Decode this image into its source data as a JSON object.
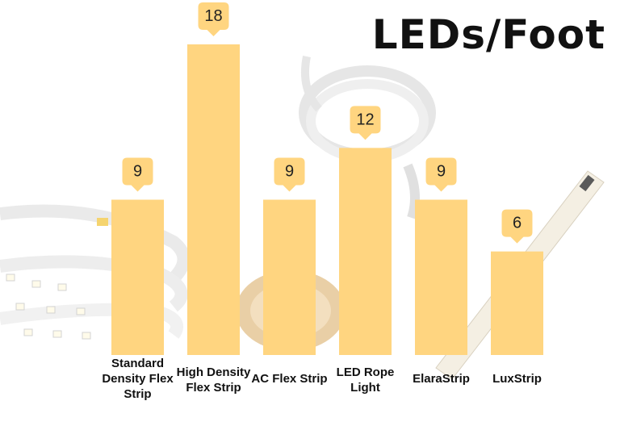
{
  "chart_data": {
    "type": "bar",
    "title": "LEDs/Foot",
    "categories": [
      "Standard Density Flex Strip",
      "High Density Flex Strip",
      "AC Flex Strip",
      "LED Rope Light",
      "ElaraStrip",
      "LuxStrip"
    ],
    "category_lines": [
      [
        "Standard",
        "Density Flex",
        "Strip"
      ],
      [
        "High Density",
        "Flex Strip"
      ],
      [
        "AC Flex Strip"
      ],
      [
        "LED Rope",
        "Light"
      ],
      [
        "ElaraStrip"
      ],
      [
        "LuxStrip"
      ]
    ],
    "values": [
      9,
      18,
      9,
      12,
      9,
      6
    ],
    "data_labels": [
      "9",
      "18",
      "9",
      "12",
      "9",
      "6"
    ],
    "xlabel": "",
    "ylabel": "",
    "ylim": [
      0,
      18
    ],
    "grid": false,
    "legend": "none",
    "colors": {
      "bar": "#FFD580",
      "label_box": "#FFD580",
      "label_text": "#222222",
      "title": "#111111"
    }
  }
}
